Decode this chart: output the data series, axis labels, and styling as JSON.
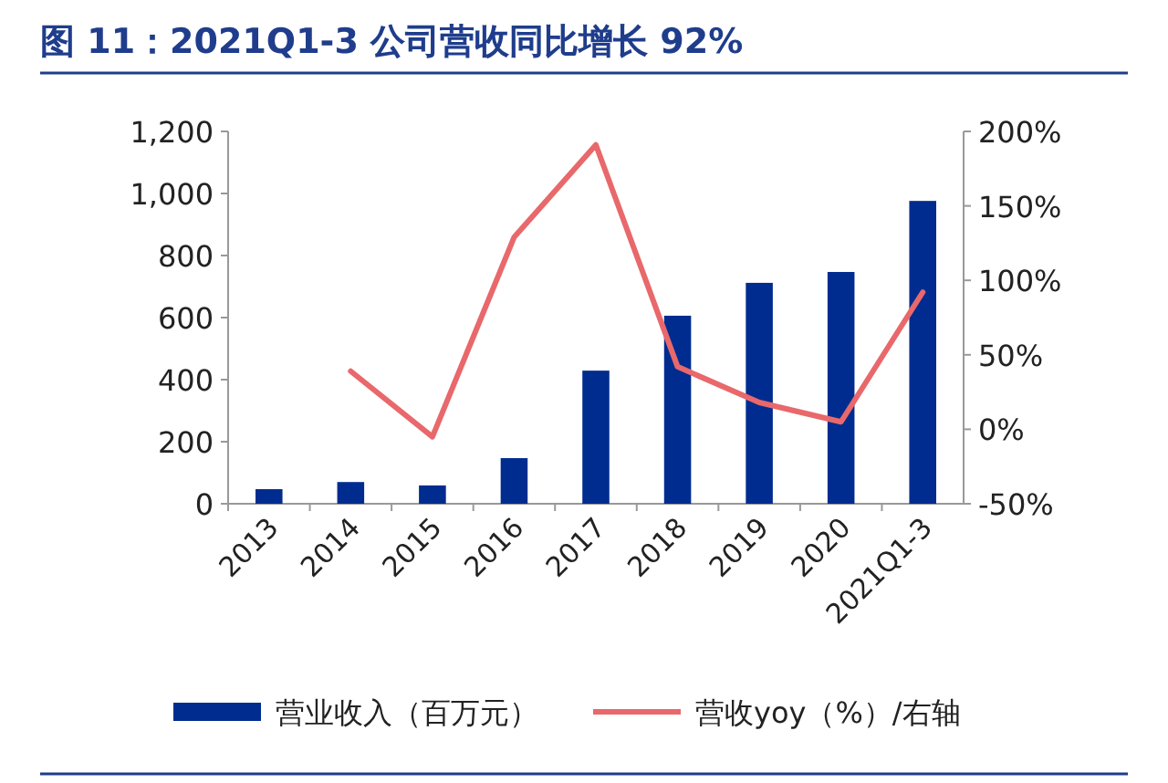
{
  "chart_data": {
    "type": "bar",
    "title": "图 11：2021Q1-3 公司营收同比增长 92%",
    "categories": [
      "2013",
      "2014",
      "2015",
      "2016",
      "2017",
      "2018",
      "2019",
      "2020",
      "2021Q1-3"
    ],
    "series": [
      {
        "name": "营业收入（百万元）",
        "color": "#002c8f",
        "values": [
          47,
          70,
          59,
          147,
          429,
          606,
          712,
          747,
          976
        ]
      },
      {
        "name": "营收yoy（%）/右轴",
        "type": "line",
        "axis": "y2",
        "color": "#e8686b",
        "values": [
          null,
          39,
          -5,
          129,
          191,
          42,
          18,
          5,
          92
        ]
      }
    ],
    "ylim": [
      0,
      1200
    ],
    "yticks": [
      0,
      200,
      400,
      600,
      800,
      {
        "value": 1000,
        "label": "1,000"
      },
      {
        "value": 1200,
        "label": "1,200"
      }
    ],
    "y2lim": [
      -50,
      200
    ],
    "y2ticks": [
      {
        "value": -50,
        "label": "-50%"
      },
      {
        "value": 0,
        "label": "0%"
      },
      {
        "value": 50,
        "label": "50%"
      },
      {
        "value": 100,
        "label": "100%"
      },
      {
        "value": 150,
        "label": "150%"
      },
      {
        "value": 200,
        "label": "200%"
      }
    ],
    "legend": "bottom",
    "grid": false,
    "marker": "none"
  }
}
